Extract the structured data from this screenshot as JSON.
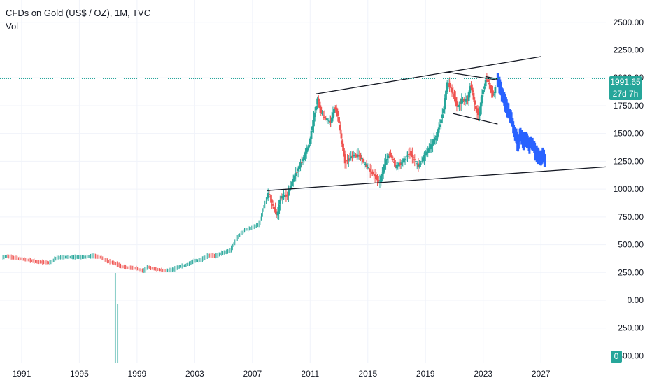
{
  "chart_data": {
    "type": "candlestick",
    "title": "CFDs on Gold (US$ / OZ), 1M, TVC",
    "indicator_label": "Vol",
    "y_ticks": [
      "2500.00",
      "2250.00",
      "2000.00",
      "1750.00",
      "1500.00",
      "1250.00",
      "1000.00",
      "750.00",
      "500.00",
      "250.00",
      "0.00",
      "−250.00",
      "−500.00"
    ],
    "y_tick_values": [
      2500,
      2250,
      2000,
      1750,
      1500,
      1250,
      1000,
      750,
      500,
      250,
      0,
      -250,
      -500
    ],
    "x_ticks": [
      "1991",
      "1995",
      "1999",
      "2003",
      "2007",
      "2011",
      "2015",
      "2019",
      "2023",
      "2027"
    ],
    "x_tick_values": [
      1991,
      1995,
      1999,
      2003,
      2007,
      2011,
      2015,
      2019,
      2023,
      2027
    ],
    "xlim": [
      1989.5,
      2031.5
    ],
    "ylim": [
      -560,
      2700
    ],
    "grid": true,
    "current_price": {
      "value": 1991.65,
      "label": "1991.65",
      "countdown": "27d 7h"
    },
    "volume_label": "0",
    "price_path": [
      [
        1989.7,
        380
      ],
      [
        1990.0,
        395
      ],
      [
        1990.5,
        380
      ],
      [
        1991.0,
        370
      ],
      [
        1991.5,
        360
      ],
      [
        1992.0,
        345
      ],
      [
        1992.5,
        340
      ],
      [
        1993.0,
        335
      ],
      [
        1993.5,
        380
      ],
      [
        1994.0,
        385
      ],
      [
        1994.5,
        385
      ],
      [
        1995.0,
        385
      ],
      [
        1995.5,
        385
      ],
      [
        1996.0,
        395
      ],
      [
        1996.5,
        385
      ],
      [
        1997.0,
        350
      ],
      [
        1997.5,
        330
      ],
      [
        1998.0,
        300
      ],
      [
        1998.5,
        290
      ],
      [
        1999.0,
        285
      ],
      [
        1999.5,
        260
      ],
      [
        1999.8,
        300
      ],
      [
        2000.0,
        285
      ],
      [
        2000.5,
        275
      ],
      [
        2001.0,
        265
      ],
      [
        2001.5,
        270
      ],
      [
        2002.0,
        300
      ],
      [
        2002.5,
        315
      ],
      [
        2003.0,
        350
      ],
      [
        2003.5,
        360
      ],
      [
        2004.0,
        400
      ],
      [
        2004.5,
        395
      ],
      [
        2005.0,
        425
      ],
      [
        2005.5,
        440
      ],
      [
        2006.0,
        560
      ],
      [
        2006.5,
        630
      ],
      [
        2007.0,
        650
      ],
      [
        2007.5,
        680
      ],
      [
        2008.0,
        900
      ],
      [
        2008.2,
        970
      ],
      [
        2008.5,
        840
      ],
      [
        2008.8,
        760
      ],
      [
        2009.0,
        920
      ],
      [
        2009.5,
        950
      ],
      [
        2010.0,
        1120
      ],
      [
        2010.5,
        1250
      ],
      [
        2011.0,
        1400
      ],
      [
        2011.6,
        1830
      ],
      [
        2011.8,
        1700
      ],
      [
        2012.0,
        1650
      ],
      [
        2012.5,
        1600
      ],
      [
        2012.8,
        1750
      ],
      [
        2013.0,
        1660
      ],
      [
        2013.3,
        1400
      ],
      [
        2013.5,
        1240
      ],
      [
        2014.0,
        1300
      ],
      [
        2014.5,
        1300
      ],
      [
        2015.0,
        1200
      ],
      [
        2015.5,
        1130
      ],
      [
        2015.9,
        1060
      ],
      [
        2016.3,
        1250
      ],
      [
        2016.6,
        1330
      ],
      [
        2017.0,
        1200
      ],
      [
        2017.5,
        1250
      ],
      [
        2018.0,
        1330
      ],
      [
        2018.6,
        1200
      ],
      [
        2019.0,
        1300
      ],
      [
        2019.5,
        1400
      ],
      [
        2019.9,
        1500
      ],
      [
        2020.3,
        1700
      ],
      [
        2020.6,
        1970
      ],
      [
        2021.0,
        1850
      ],
      [
        2021.3,
        1730
      ],
      [
        2021.6,
        1800
      ],
      [
        2022.0,
        1800
      ],
      [
        2022.2,
        1950
      ],
      [
        2022.5,
        1750
      ],
      [
        2022.8,
        1650
      ],
      [
        2023.0,
        1850
      ],
      [
        2023.3,
        2000
      ],
      [
        2023.6,
        1900
      ],
      [
        2023.8,
        1830
      ],
      [
        2024.0,
        1990
      ]
    ],
    "candle_band": {
      "x_start": 2008.0,
      "x_end": 2023.9
    },
    "projection_path": [
      [
        2024.0,
        1990
      ],
      [
        2024.2,
        1900
      ],
      [
        2024.5,
        1780
      ],
      [
        2024.8,
        1680
      ],
      [
        2025.0,
        1600
      ],
      [
        2025.2,
        1520
      ],
      [
        2025.4,
        1410
      ],
      [
        2025.6,
        1490
      ],
      [
        2025.8,
        1420
      ],
      [
        2026.0,
        1460
      ],
      [
        2026.2,
        1390
      ],
      [
        2026.4,
        1430
      ],
      [
        2026.6,
        1340
      ],
      [
        2026.8,
        1300
      ],
      [
        2027.0,
        1280
      ],
      [
        2027.2,
        1320
      ],
      [
        2027.3,
        1240
      ]
    ],
    "trendlines": [
      {
        "from": [
          2011.4,
          1855
        ],
        "to": [
          2027.0,
          2190
        ]
      },
      {
        "from": [
          2008.0,
          987
        ],
        "to": [
          2031.5,
          1200
        ]
      },
      {
        "from": [
          2020.5,
          2050
        ],
        "to": [
          2024.0,
          1980
        ]
      },
      {
        "from": [
          2020.9,
          1680
        ],
        "to": [
          2024.0,
          1585
        ]
      },
      {
        "from": [
          2023.2,
          2010
        ],
        "to": [
          2024.0,
          1990
        ]
      }
    ],
    "volume_bars": [
      {
        "x": 1997.5,
        "value": 1
      },
      {
        "x": 1997.65,
        "value": 0.65
      }
    ],
    "colors": {
      "up": "#26a69a",
      "down": "#ef5350",
      "projection": "#2962ff",
      "trendline": "#131722",
      "price_line": "#26a69a"
    }
  }
}
